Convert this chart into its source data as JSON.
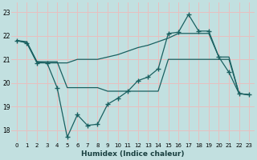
{
  "xlabel": "Humidex (Indice chaleur)",
  "bg_color": "#c2e0e0",
  "grid_color": "#e8c0c0",
  "line_color": "#1a6060",
  "xlim": [
    -0.5,
    23.5
  ],
  "ylim": [
    17.5,
    23.4
  ],
  "yticks": [
    18,
    19,
    20,
    21,
    22,
    23
  ],
  "xticks": [
    0,
    1,
    2,
    3,
    4,
    5,
    6,
    7,
    8,
    9,
    10,
    11,
    12,
    13,
    14,
    15,
    16,
    17,
    18,
    19,
    20,
    21,
    22,
    23
  ],
  "series_top": {
    "x": [
      0,
      1,
      2,
      3,
      4,
      5,
      6,
      7,
      8,
      9,
      10,
      11,
      12,
      13,
      14,
      15,
      16,
      17,
      18,
      19,
      20,
      21,
      22,
      23
    ],
    "y": [
      21.8,
      21.75,
      20.9,
      20.85,
      20.85,
      20.85,
      21.0,
      21.0,
      21.0,
      21.1,
      21.2,
      21.35,
      21.5,
      21.6,
      21.75,
      21.9,
      22.1,
      22.1,
      22.1,
      22.1,
      21.1,
      21.1,
      19.55,
      19.5
    ]
  },
  "series_mid": {
    "x": [
      0,
      1,
      2,
      3,
      4,
      5,
      6,
      7,
      8,
      9,
      10,
      11,
      12,
      13,
      14,
      15,
      16,
      17,
      18,
      19,
      20,
      21,
      22,
      23
    ],
    "y": [
      21.8,
      21.7,
      20.9,
      20.9,
      20.9,
      19.8,
      19.8,
      19.8,
      19.8,
      19.65,
      19.65,
      19.65,
      19.65,
      19.65,
      19.65,
      21.0,
      21.0,
      21.0,
      21.0,
      21.0,
      21.0,
      21.0,
      19.55,
      19.5
    ]
  },
  "series_main": {
    "x": [
      0,
      1,
      2,
      3,
      4,
      5,
      6,
      7,
      8,
      9,
      10,
      11,
      12,
      13,
      14,
      15,
      16,
      17,
      18,
      19,
      20,
      21,
      22,
      23
    ],
    "y": [
      21.8,
      21.7,
      20.85,
      20.85,
      19.8,
      17.7,
      18.65,
      18.2,
      18.25,
      19.1,
      19.35,
      19.65,
      20.1,
      20.25,
      20.6,
      22.1,
      22.15,
      22.9,
      22.2,
      22.2,
      21.1,
      20.45,
      19.55,
      19.5
    ]
  }
}
